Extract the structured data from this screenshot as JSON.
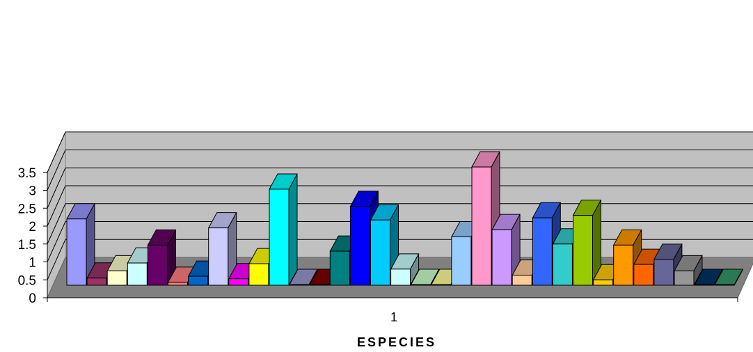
{
  "chart_data": {
    "type": "bar",
    "style": "3d-clustered-column",
    "categories": [
      "1"
    ],
    "xlabel": "ESPECIES",
    "ylabel": "",
    "ylim": [
      0,
      3.5
    ],
    "yticks": [
      "0",
      "0.5",
      "1",
      "1.5",
      "2",
      "2.5",
      "3",
      "3.5"
    ],
    "grid": true,
    "legend": "none",
    "wall_color": "#c0c0c0",
    "series": [
      {
        "value": 1.85,
        "color": "#9999ff"
      },
      {
        "value": 0.2,
        "color": "#993366"
      },
      {
        "value": 0.4,
        "color": "#ffffcc"
      },
      {
        "value": 0.62,
        "color": "#ccffff"
      },
      {
        "value": 1.12,
        "color": "#660066"
      },
      {
        "value": 0.08,
        "color": "#ff8080"
      },
      {
        "value": 0.25,
        "color": "#0066cc"
      },
      {
        "value": 1.6,
        "color": "#ccccff"
      },
      {
        "value": 0.18,
        "color": "#ff00ff"
      },
      {
        "value": 0.6,
        "color": "#ffff00"
      },
      {
        "value": 2.68,
        "color": "#00ffff"
      },
      {
        "value": 0.02,
        "color": "#9999cc"
      },
      {
        "value": 0.02,
        "color": "#800000"
      },
      {
        "value": 0.95,
        "color": "#008080"
      },
      {
        "value": 2.2,
        "color": "#0000ff"
      },
      {
        "value": 1.82,
        "color": "#00ccff"
      },
      {
        "value": 0.45,
        "color": "#ccffff"
      },
      {
        "value": 0.02,
        "color": "#ccffcc"
      },
      {
        "value": 0.02,
        "color": "#ffff99"
      },
      {
        "value": 1.35,
        "color": "#99ccff"
      },
      {
        "value": 3.3,
        "color": "#ff99cc"
      },
      {
        "value": 1.55,
        "color": "#cc99ff"
      },
      {
        "value": 0.28,
        "color": "#ffcc99"
      },
      {
        "value": 1.88,
        "color": "#3366ff"
      },
      {
        "value": 1.15,
        "color": "#33cccc"
      },
      {
        "value": 1.95,
        "color": "#99cc00"
      },
      {
        "value": 0.15,
        "color": "#ffcc00"
      },
      {
        "value": 1.12,
        "color": "#ff9900"
      },
      {
        "value": 0.58,
        "color": "#ff6600"
      },
      {
        "value": 0.72,
        "color": "#666699"
      },
      {
        "value": 0.4,
        "color": "#969696"
      },
      {
        "value": 0.02,
        "color": "#003366"
      },
      {
        "value": 0.02,
        "color": "#339966"
      }
    ]
  }
}
